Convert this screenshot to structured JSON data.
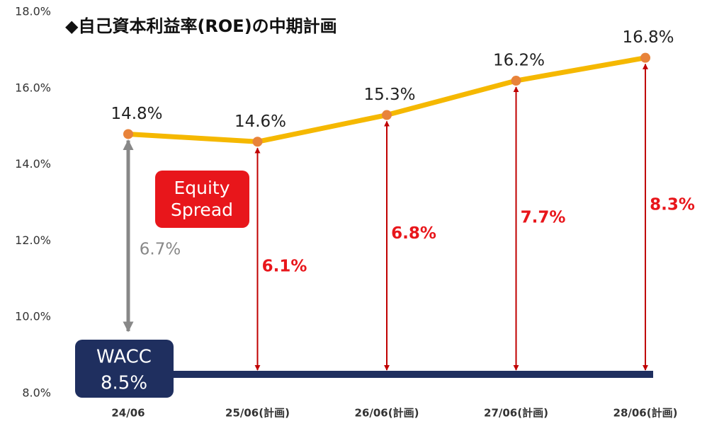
{
  "chart_data": {
    "type": "line",
    "title": "◆自己資本利益率(ROE)の中期計画",
    "categories": [
      "24/06",
      "25/06(計画)",
      "26/06(計画)",
      "27/06(計画)",
      "28/06(計画)"
    ],
    "series": [
      {
        "name": "ROE",
        "color": "#f5b800",
        "marker_color": "#e8833a",
        "values": [
          14.8,
          14.6,
          15.3,
          16.2,
          16.8
        ],
        "value_labels": [
          "14.8%",
          "14.6%",
          "15.3%",
          "16.2%",
          "16.8%"
        ]
      }
    ],
    "wacc": {
      "label": "WACC",
      "value": 8.5,
      "value_label": "8.5%",
      "color": "#1f2f5f"
    },
    "spread": {
      "label": [
        "Equity",
        "Spread"
      ],
      "label_color": "#e8161b",
      "values": [
        6.7,
        6.1,
        6.8,
        7.7,
        8.3
      ],
      "value_labels": [
        "6.7%",
        "6.1%",
        "6.8%",
        "7.7%",
        "8.3%"
      ],
      "colors": [
        "#888888",
        "#c00000",
        "#c00000",
        "#c00000",
        "#c00000"
      ],
      "text_colors": [
        "#888888",
        "#e8161b",
        "#e8161b",
        "#e8161b",
        "#e8161b"
      ]
    },
    "ylim": [
      8,
      18
    ],
    "yticks": [
      {
        "value": 8,
        "label": "8.0%"
      },
      {
        "value": 10,
        "label": "10.0%"
      },
      {
        "value": 12,
        "label": "12.0%"
      },
      {
        "value": 14,
        "label": "14.0%"
      },
      {
        "value": 16,
        "label": "16.0%"
      },
      {
        "value": 18,
        "label": "18.0%"
      }
    ],
    "grid": false
  }
}
